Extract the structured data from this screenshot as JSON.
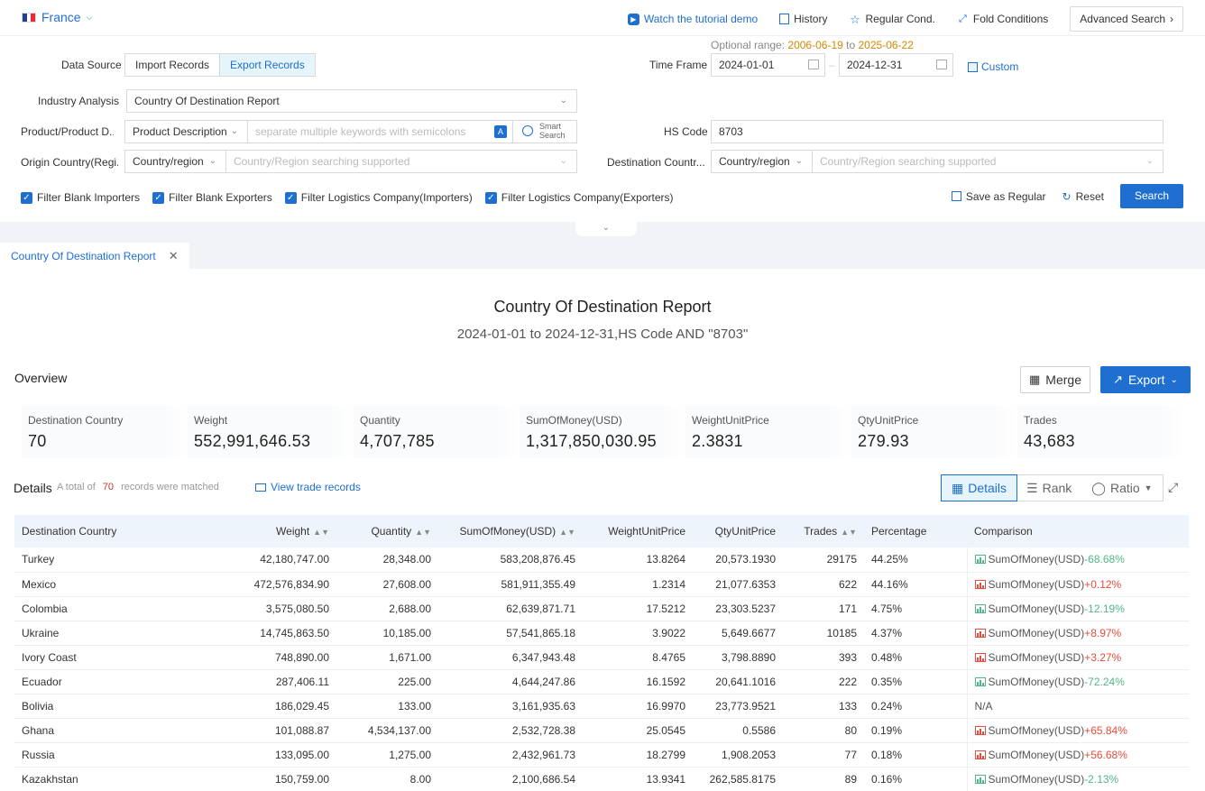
{
  "topbar": {
    "country": "France",
    "links": {
      "tutorial": "Watch the tutorial demo",
      "history": "History",
      "regular": "Regular Cond.",
      "fold": "Fold Conditions",
      "advanced": "Advanced Search"
    }
  },
  "filters": {
    "optional_range_label": "Optional range:",
    "optional_range_from": "2006-06-19",
    "optional_range_to_word": "to",
    "optional_range_to": "2025-06-22",
    "data_source_label": "Data Source",
    "data_source_options": [
      "Import Records",
      "Export Records"
    ],
    "time_frame_label": "Time Frame",
    "date_from": "2024-01-01",
    "date_to": "2024-12-31",
    "custom_label": "Custom",
    "industry_label": "Industry Analysis",
    "industry_value": "Country Of Destination Report",
    "product_label": "Product/Product D...",
    "product_type": "Product Description",
    "product_placeholder": "separate multiple keywords with semicolons",
    "smart_search": [
      "Smart",
      "Search"
    ],
    "hs_label": "HS Code",
    "hs_value": "8703",
    "origin_label": "Origin Country(Regi...",
    "origin_type": "Country/region",
    "origin_placeholder": "Country/Region searching supported",
    "dest_label": "Destination Countr...",
    "dest_type": "Country/region",
    "dest_placeholder": "Country/Region searching supported",
    "checkboxes": [
      "Filter Blank Importers",
      "Filter Blank Exporters",
      "Filter Logistics Company(Importers)",
      "Filter Logistics Company(Exporters)"
    ],
    "save_regular": "Save as Regular",
    "reset": "Reset",
    "search": "Search"
  },
  "tab": {
    "label": "Country Of Destination Report"
  },
  "report": {
    "title": "Country Of Destination Report",
    "subtitle": "2024-01-01 to 2024-12-31,HS Code AND \"8703\""
  },
  "overview": {
    "title": "Overview",
    "merge": "Merge",
    "export": "Export",
    "stats": [
      {
        "label": "Destination Country",
        "value": "70"
      },
      {
        "label": "Weight",
        "value": "552,991,646.53"
      },
      {
        "label": "Quantity",
        "value": "4,707,785"
      },
      {
        "label": "SumOfMoney(USD)",
        "value": "1,317,850,030.95"
      },
      {
        "label": "WeightUnitPrice",
        "value": "2.3831"
      },
      {
        "label": "QtyUnitPrice",
        "value": "279.93"
      },
      {
        "label": "Trades",
        "value": "43,683"
      }
    ]
  },
  "details": {
    "title": "Details",
    "total_prefix": "A total of",
    "total_count": "70",
    "total_suffix": "records were matched",
    "view_trade": "View trade records",
    "views": [
      "Details",
      "Rank",
      "Ratio"
    ],
    "columns": [
      "Destination Country",
      "Weight",
      "Quantity",
      "SumOfMoney(USD)",
      "WeightUnitPrice",
      "QtyUnitPrice",
      "Trades",
      "Percentage",
      "Comparison"
    ],
    "rows": [
      {
        "country": "Turkey",
        "weight": "42,180,747.00",
        "qty": "28,348.00",
        "money": "583,208,876.45",
        "wup": "13.8264",
        "qup": "20,573.1930",
        "trades": "29175",
        "pct": "44.25%",
        "cmp_label": "SumOfMoney(USD)",
        "cmp": "-68.68%",
        "dir": "down"
      },
      {
        "country": "Mexico",
        "weight": "472,576,834.90",
        "qty": "27,608.00",
        "money": "581,911,355.49",
        "wup": "1.2314",
        "qup": "21,077.6353",
        "trades": "622",
        "pct": "44.16%",
        "cmp_label": "SumOfMoney(USD)",
        "cmp": "+0.12%",
        "dir": "up"
      },
      {
        "country": "Colombia",
        "weight": "3,575,080.50",
        "qty": "2,688.00",
        "money": "62,639,871.71",
        "wup": "17.5212",
        "qup": "23,303.5237",
        "trades": "171",
        "pct": "4.75%",
        "cmp_label": "SumOfMoney(USD)",
        "cmp": "-12.19%",
        "dir": "down"
      },
      {
        "country": "Ukraine",
        "weight": "14,745,863.50",
        "qty": "10,185.00",
        "money": "57,541,865.18",
        "wup": "3.9022",
        "qup": "5,649.6677",
        "trades": "10185",
        "pct": "4.37%",
        "cmp_label": "SumOfMoney(USD)",
        "cmp": "+8.97%",
        "dir": "up"
      },
      {
        "country": "Ivory Coast",
        "weight": "748,890.00",
        "qty": "1,671.00",
        "money": "6,347,943.48",
        "wup": "8.4765",
        "qup": "3,798.8890",
        "trades": "393",
        "pct": "0.48%",
        "cmp_label": "SumOfMoney(USD)",
        "cmp": "+3.27%",
        "dir": "up"
      },
      {
        "country": "Ecuador",
        "weight": "287,406.11",
        "qty": "225.00",
        "money": "4,644,247.86",
        "wup": "16.1592",
        "qup": "20,641.1016",
        "trades": "222",
        "pct": "0.35%",
        "cmp_label": "SumOfMoney(USD)",
        "cmp": "-72.24%",
        "dir": "down"
      },
      {
        "country": "Bolivia",
        "weight": "186,029.45",
        "qty": "133.00",
        "money": "3,161,935.63",
        "wup": "16.9970",
        "qup": "23,773.9521",
        "trades": "133",
        "pct": "0.24%",
        "cmp_label": "N/A",
        "cmp": "",
        "dir": "none"
      },
      {
        "country": "Ghana",
        "weight": "101,088.87",
        "qty": "4,534,137.00",
        "money": "2,532,728.38",
        "wup": "25.0545",
        "qup": "0.5586",
        "trades": "80",
        "pct": "0.19%",
        "cmp_label": "SumOfMoney(USD)",
        "cmp": "+65.84%",
        "dir": "up"
      },
      {
        "country": "Russia",
        "weight": "133,095.00",
        "qty": "1,275.00",
        "money": "2,432,961.73",
        "wup": "18.2799",
        "qup": "1,908.2053",
        "trades": "77",
        "pct": "0.18%",
        "cmp_label": "SumOfMoney(USD)",
        "cmp": "+56.68%",
        "dir": "up"
      },
      {
        "country": "Kazakhstan",
        "weight": "150,759.00",
        "qty": "8.00",
        "money": "2,100,686.54",
        "wup": "13.9341",
        "qup": "262,585.8175",
        "trades": "89",
        "pct": "0.16%",
        "cmp_label": "SumOfMoney(USD)",
        "cmp": "-2.13%",
        "dir": "down"
      }
    ]
  },
  "colors": {
    "accent": "#1f6fd1",
    "up": "#e74c3c",
    "down": "#52b788"
  }
}
